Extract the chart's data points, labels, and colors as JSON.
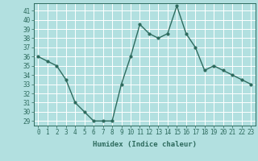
{
  "x": [
    0,
    1,
    2,
    3,
    4,
    5,
    6,
    7,
    8,
    9,
    10,
    11,
    12,
    13,
    14,
    15,
    16,
    17,
    18,
    19,
    20,
    21,
    22,
    23
  ],
  "y": [
    36,
    35.5,
    35,
    33.5,
    31,
    30,
    29,
    29,
    29,
    33,
    36,
    39.5,
    38.5,
    38,
    38.5,
    41.5,
    38.5,
    37,
    34.5,
    35,
    34.5,
    34,
    33.5,
    33
  ],
  "line_color": "#2e6b5e",
  "marker": "o",
  "marker_size": 2.0,
  "bg_color": "#b2e0e0",
  "grid_color": "#ffffff",
  "tick_color": "#2e6b5e",
  "label_color": "#2e6b5e",
  "xlabel": "Humidex (Indice chaleur)",
  "ylim_min": 28.5,
  "ylim_max": 41.8,
  "yticks": [
    29,
    30,
    31,
    32,
    33,
    34,
    35,
    36,
    37,
    38,
    39,
    40,
    41
  ],
  "xticks": [
    0,
    1,
    2,
    3,
    4,
    5,
    6,
    7,
    8,
    9,
    10,
    11,
    12,
    13,
    14,
    15,
    16,
    17,
    18,
    19,
    20,
    21,
    22,
    23
  ],
  "linewidth": 1.0,
  "tick_fontsize": 5.5,
  "label_fontsize": 6.5
}
